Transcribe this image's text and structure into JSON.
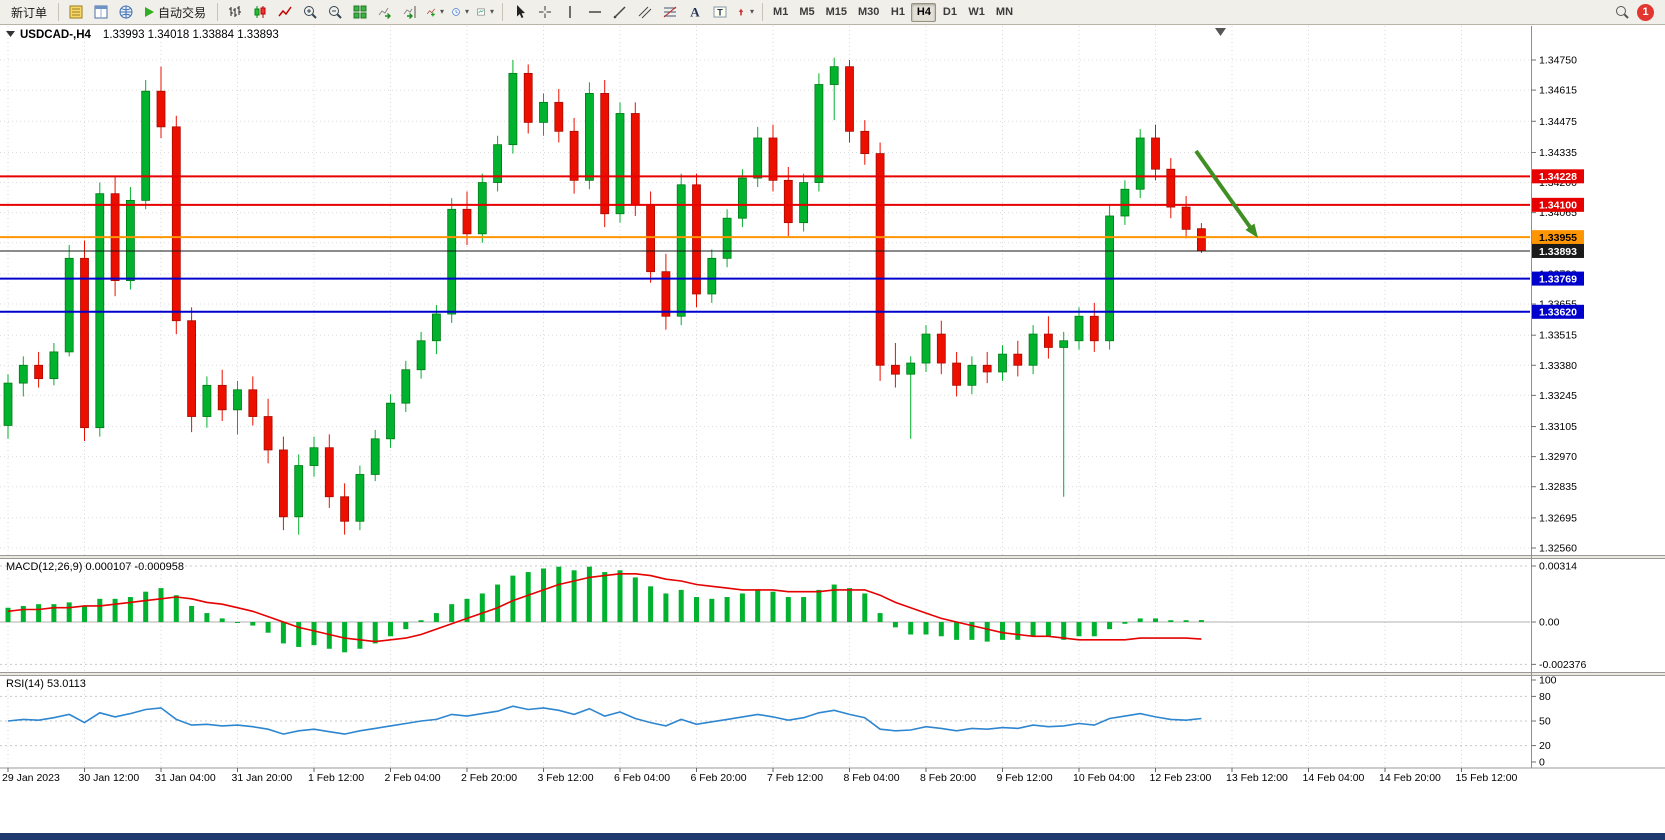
{
  "toolbar": {
    "new_order_label": "新订单",
    "autotrading_label": "自动交易",
    "left_icons": [
      "market-watch-icon",
      "data-window-icon",
      "navigator-icon"
    ],
    "chart_icons": [
      {
        "name": "bar-chart-icon"
      },
      {
        "name": "candlestick-icon"
      },
      {
        "name": "line-chart-icon"
      },
      {
        "name": "zoom-in-icon"
      },
      {
        "name": "zoom-out-icon"
      },
      {
        "name": "tile-windows-icon"
      },
      {
        "name": "auto-scroll-icon"
      },
      {
        "name": "chart-shift-icon"
      },
      {
        "name": "add-indicator-icon",
        "caret": true
      },
      {
        "name": "periods-icon",
        "caret": true
      },
      {
        "name": "templates-icon",
        "caret": true
      }
    ],
    "drawing_icons": [
      {
        "name": "cursor-icon"
      },
      {
        "name": "crosshair-icon"
      },
      {
        "name": "vertical-line-icon"
      },
      {
        "name": "horizontal-line-icon"
      },
      {
        "name": "trendline-icon"
      },
      {
        "name": "equidistant-channel-icon"
      },
      {
        "name": "fibonacci-icon"
      },
      {
        "name": "text-icon"
      },
      {
        "name": "text-label-icon"
      },
      {
        "name": "arrow-objects-icon",
        "caret": true
      }
    ],
    "timeframes": [
      "M1",
      "M5",
      "M15",
      "M30",
      "H1",
      "H4",
      "D1",
      "W1",
      "MN"
    ],
    "active_timeframe": "H4",
    "search_icon": "search-icon",
    "notification_count": "1"
  },
  "chart": {
    "title_symbol": "USDCAD-,H4",
    "title_ohlc": "1.33993 1.34018 1.33884 1.33893",
    "arrow_color": "#3F8F23"
  },
  "chart_data": [
    {
      "id": "main",
      "type": "candlestick",
      "symbol": "USDCAD",
      "timeframe": "H4",
      "title": "USDCAD-,H4 1.33993 1.34018 1.33884 1.33893",
      "last_bar": {
        "open": 1.33993,
        "high": 1.34018,
        "low": 1.33884,
        "close": 1.33893
      },
      "up_color": "#00B22D",
      "down_color": "#EC0F00",
      "price_ticks": [
        "1.34750",
        "1.34615",
        "1.34475",
        "1.34335",
        "1.34200",
        "1.34065",
        "1.33930",
        "1.33790",
        "1.33655",
        "1.33515",
        "1.33380",
        "1.33245",
        "1.33105",
        "1.32970",
        "1.32835",
        "1.32695",
        "1.32560"
      ],
      "price_range": {
        "min": 1.3256,
        "max": 1.3475
      },
      "time_labels": [
        "29 Jan 2023",
        "30 Jan 12:00",
        "31 Jan 04:00",
        "31 Jan 20:00",
        "1 Feb 12:00",
        "2 Feb 04:00",
        "2 Feb 20:00",
        "3 Feb 12:00",
        "6 Feb 04:00",
        "6 Feb 20:00",
        "7 Feb 12:00",
        "8 Feb 04:00",
        "8 Feb 20:00",
        "9 Feb 12:00",
        "10 Feb 04:00",
        "12 Feb 23:00",
        "13 Feb 12:00",
        "14 Feb 04:00",
        "14 Feb 20:00",
        "15 Feb 12:00"
      ],
      "levels": [
        {
          "name": "resistance-line-1",
          "price": 1.34228,
          "label": "1.34228",
          "color": "#E60000",
          "text_color": "#ffffff",
          "width": 2
        },
        {
          "name": "resistance-line-2",
          "price": 1.341,
          "label": "1.34100",
          "color": "#E60000",
          "text_color": "#ffffff",
          "width": 2
        },
        {
          "name": "pivot-line-orange",
          "price": 1.33955,
          "label": "1.33955",
          "color": "#FF9500",
          "text_color": "#000000",
          "width": 2
        },
        {
          "name": "bid-price-line",
          "price": 1.33893,
          "label": "1.33893",
          "color": "#1A1A1A",
          "text_color": "#ffffff",
          "width": 1
        },
        {
          "name": "support-line-1",
          "price": 1.33769,
          "label": "1.33769",
          "color": "#0000CC",
          "text_color": "#ffffff",
          "width": 2
        },
        {
          "name": "support-line-2",
          "price": 1.3362,
          "label": "1.33620",
          "color": "#0000CC",
          "text_color": "#ffffff",
          "width": 2
        }
      ],
      "candles": [
        [
          1.3311,
          1.3334,
          1.3305,
          1.333
        ],
        [
          1.333,
          1.3342,
          1.3324,
          1.3338
        ],
        [
          1.3338,
          1.3344,
          1.3328,
          1.3332
        ],
        [
          1.3332,
          1.3348,
          1.3329,
          1.3344
        ],
        [
          1.3344,
          1.3392,
          1.3342,
          1.3386
        ],
        [
          1.3386,
          1.3394,
          1.3304,
          1.331
        ],
        [
          1.331,
          1.342,
          1.3306,
          1.3415
        ],
        [
          1.3415,
          1.3423,
          1.3369,
          1.3376
        ],
        [
          1.3376,
          1.3418,
          1.3372,
          1.3412
        ],
        [
          1.3412,
          1.3466,
          1.3408,
          1.3461
        ],
        [
          1.3461,
          1.3472,
          1.344,
          1.3445
        ],
        [
          1.3445,
          1.345,
          1.3352,
          1.3358
        ],
        [
          1.3358,
          1.3364,
          1.3308,
          1.3315
        ],
        [
          1.3315,
          1.3333,
          1.331,
          1.3329
        ],
        [
          1.3329,
          1.3336,
          1.3313,
          1.3318
        ],
        [
          1.3318,
          1.3331,
          1.3307,
          1.3327
        ],
        [
          1.3327,
          1.3333,
          1.3311,
          1.3315
        ],
        [
          1.3315,
          1.3323,
          1.3294,
          1.33
        ],
        [
          1.33,
          1.3306,
          1.3264,
          1.327
        ],
        [
          1.327,
          1.3298,
          1.3262,
          1.3293
        ],
        [
          1.3293,
          1.3306,
          1.3288,
          1.3301
        ],
        [
          1.3301,
          1.3307,
          1.3274,
          1.3279
        ],
        [
          1.3279,
          1.3285,
          1.3262,
          1.3268
        ],
        [
          1.3268,
          1.3293,
          1.3264,
          1.3289
        ],
        [
          1.3289,
          1.3309,
          1.3286,
          1.3305
        ],
        [
          1.3305,
          1.3325,
          1.3301,
          1.3321
        ],
        [
          1.3321,
          1.334,
          1.3317,
          1.3336
        ],
        [
          1.3336,
          1.3353,
          1.3332,
          1.3349
        ],
        [
          1.3349,
          1.3365,
          1.3343,
          1.3361
        ],
        [
          1.3361,
          1.3413,
          1.3357,
          1.3408
        ],
        [
          1.3408,
          1.3416,
          1.3392,
          1.3397
        ],
        [
          1.3397,
          1.3424,
          1.3393,
          1.342
        ],
        [
          1.342,
          1.3441,
          1.3416,
          1.3437
        ],
        [
          1.3437,
          1.3475,
          1.3433,
          1.3469
        ],
        [
          1.3469,
          1.3473,
          1.3442,
          1.3447
        ],
        [
          1.3447,
          1.346,
          1.3441,
          1.3456
        ],
        [
          1.3456,
          1.3462,
          1.3438,
          1.3443
        ],
        [
          1.3443,
          1.3449,
          1.3415,
          1.3421
        ],
        [
          1.3421,
          1.3465,
          1.3417,
          1.346
        ],
        [
          1.346,
          1.3466,
          1.34,
          1.3406
        ],
        [
          1.3406,
          1.3456,
          1.3402,
          1.3451
        ],
        [
          1.3451,
          1.3456,
          1.3405,
          1.341
        ],
        [
          1.341,
          1.3416,
          1.3375,
          1.338
        ],
        [
          1.338,
          1.3388,
          1.3354,
          1.336
        ],
        [
          1.336,
          1.3424,
          1.3356,
          1.3419
        ],
        [
          1.3419,
          1.3424,
          1.3364,
          1.337
        ],
        [
          1.337,
          1.339,
          1.3366,
          1.3386
        ],
        [
          1.3386,
          1.3408,
          1.3382,
          1.3404
        ],
        [
          1.3404,
          1.3426,
          1.34,
          1.3422
        ],
        [
          1.3422,
          1.3445,
          1.3418,
          1.344
        ],
        [
          1.344,
          1.3446,
          1.3416,
          1.3421
        ],
        [
          1.3421,
          1.3427,
          1.3396,
          1.3402
        ],
        [
          1.3402,
          1.3424,
          1.3398,
          1.342
        ],
        [
          1.342,
          1.3469,
          1.3416,
          1.3464
        ],
        [
          1.3464,
          1.3476,
          1.3448,
          1.3472
        ],
        [
          1.3472,
          1.3475,
          1.3438,
          1.3443
        ],
        [
          1.3443,
          1.3448,
          1.3428,
          1.3433
        ],
        [
          1.3433,
          1.3438,
          1.3331,
          1.3338
        ],
        [
          1.3338,
          1.3348,
          1.3328,
          1.3334
        ],
        [
          1.3334,
          1.3342,
          1.3305,
          1.3339
        ],
        [
          1.3339,
          1.3356,
          1.3335,
          1.3352
        ],
        [
          1.3352,
          1.3358,
          1.3334,
          1.3339
        ],
        [
          1.3339,
          1.3344,
          1.3324,
          1.3329
        ],
        [
          1.3329,
          1.3342,
          1.3325,
          1.3338
        ],
        [
          1.3338,
          1.3344,
          1.333,
          1.3335
        ],
        [
          1.3335,
          1.3347,
          1.3331,
          1.3343
        ],
        [
          1.3343,
          1.3349,
          1.3333,
          1.3338
        ],
        [
          1.3338,
          1.3356,
          1.3334,
          1.3352
        ],
        [
          1.3352,
          1.336,
          1.3341,
          1.3346
        ],
        [
          1.3346,
          1.3353,
          1.3279,
          1.3349
        ],
        [
          1.3349,
          1.3364,
          1.3345,
          1.336
        ],
        [
          1.336,
          1.3366,
          1.3344,
          1.3349
        ],
        [
          1.3349,
          1.341,
          1.3345,
          1.3405
        ],
        [
          1.3405,
          1.3421,
          1.3401,
          1.3417
        ],
        [
          1.3417,
          1.3444,
          1.3413,
          1.344
        ],
        [
          1.344,
          1.3446,
          1.3421,
          1.3426
        ],
        [
          1.3426,
          1.3431,
          1.3404,
          1.3409
        ],
        [
          1.3409,
          1.3414,
          1.3395,
          1.3399
        ],
        [
          1.33993,
          1.34018,
          1.33884,
          1.33893
        ]
      ]
    },
    {
      "id": "macd",
      "type": "bar",
      "label": "MACD(12,26,9) 0.000107 -0.000958",
      "axis_labels": [
        "0.00314",
        "0.00",
        "-0.002376"
      ],
      "axis_values": [
        0.00314,
        0,
        -0.002376
      ],
      "histogram_color": "#00B22D",
      "signal_color": "#E60000",
      "histogram": [
        0.0008,
        0.0009,
        0.001,
        0.001,
        0.0011,
        0.0009,
        0.0013,
        0.0013,
        0.0014,
        0.0017,
        0.0019,
        0.0015,
        0.0009,
        0.0005,
        0.0002,
        0.0,
        -0.0002,
        -0.0006,
        -0.0012,
        -0.0014,
        -0.0013,
        -0.0015,
        -0.0017,
        -0.0015,
        -0.0012,
        -0.0008,
        -0.0004,
        0.0001,
        0.0005,
        0.001,
        0.0013,
        0.0016,
        0.0021,
        0.0026,
        0.0028,
        0.003,
        0.0031,
        0.0029,
        0.0031,
        0.0028,
        0.0029,
        0.0025,
        0.002,
        0.0016,
        0.0018,
        0.0014,
        0.0013,
        0.0014,
        0.0016,
        0.0018,
        0.0017,
        0.0014,
        0.0014,
        0.0018,
        0.0021,
        0.0019,
        0.0016,
        0.0005,
        -0.0003,
        -0.0007,
        -0.0007,
        -0.0008,
        -0.001,
        -0.001,
        -0.0011,
        -0.001,
        -0.001,
        -0.0008,
        -0.0008,
        -0.001,
        -0.0008,
        -0.0008,
        -0.0004,
        -0.0001,
        0.0002,
        0.0002,
        0.0001,
        0.0001,
        0.000107
      ],
      "signal": [
        0.0006,
        0.0007,
        0.0007,
        0.0008,
        0.0008,
        0.0009,
        0.0009,
        0.001,
        0.0011,
        0.0012,
        0.0013,
        0.0014,
        0.0013,
        0.0011,
        0.001,
        0.0008,
        0.0006,
        0.0003,
        0.0,
        -0.0003,
        -0.0005,
        -0.0007,
        -0.0009,
        -0.001,
        -0.0011,
        -0.001,
        -0.0009,
        -0.0007,
        -0.0004,
        -0.0001,
        0.0002,
        0.0005,
        0.0008,
        0.0012,
        0.0015,
        0.0018,
        0.0021,
        0.0023,
        0.0025,
        0.0026,
        0.0027,
        0.0027,
        0.0026,
        0.0024,
        0.0023,
        0.0021,
        0.002,
        0.0019,
        0.0018,
        0.0018,
        0.0018,
        0.0017,
        0.0017,
        0.0017,
        0.0018,
        0.0018,
        0.0018,
        0.0015,
        0.0011,
        0.0008,
        0.0005,
        0.0002,
        0.0,
        -0.0002,
        -0.0004,
        -0.0006,
        -0.0007,
        -0.0008,
        -0.0008,
        -0.0009,
        -0.001,
        -0.001,
        -0.001,
        -0.001,
        -0.0009,
        -0.0009,
        -0.0009,
        -0.0009,
        -0.00096
      ]
    },
    {
      "id": "rsi",
      "type": "line",
      "label": "RSI(14) 53.0113",
      "axis_labels": [
        "100",
        "80",
        "50",
        "20",
        "0"
      ],
      "axis_values": [
        100,
        80,
        50,
        20,
        0
      ],
      "level_lines": [
        80,
        50,
        20
      ],
      "line_color": "#2E86D0",
      "values": [
        50,
        52,
        51,
        54,
        58,
        48,
        60,
        55,
        59,
        64,
        66,
        52,
        45,
        46,
        44,
        45,
        43,
        40,
        34,
        38,
        40,
        37,
        34,
        38,
        41,
        44,
        47,
        50,
        52,
        58,
        56,
        59,
        62,
        68,
        64,
        66,
        63,
        58,
        65,
        56,
        61,
        53,
        48,
        44,
        52,
        46,
        49,
        52,
        55,
        58,
        55,
        51,
        54,
        60,
        63,
        58,
        54,
        40,
        38,
        39,
        43,
        41,
        38,
        41,
        40,
        42,
        41,
        45,
        43,
        44,
        47,
        45,
        53,
        56,
        59,
        55,
        52,
        51,
        53.01
      ]
    }
  ]
}
